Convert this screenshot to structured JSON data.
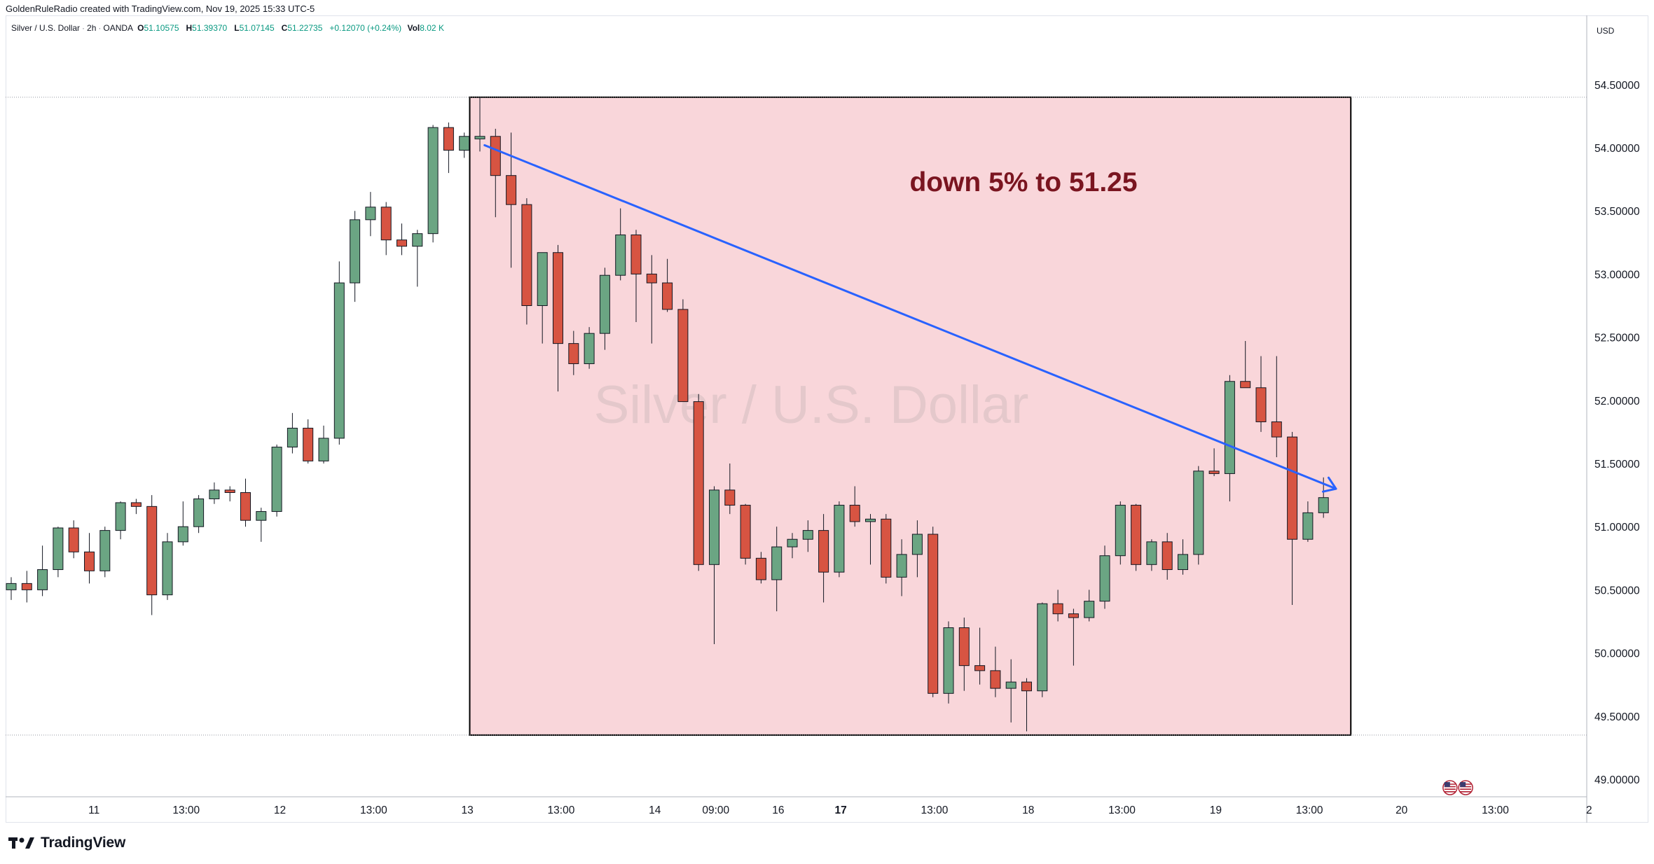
{
  "header": {
    "creator_line": "GoldenRuleRadio created with TradingView.com, Nov 19, 2025 15:33 UTC-5"
  },
  "legend": {
    "symbol": "Silver / U.S. Dollar",
    "interval": "2h",
    "source": "OANDA",
    "open_label": "O",
    "open": "51.10575",
    "high_label": "H",
    "high": "51.39370",
    "low_label": "L",
    "low": "51.07145",
    "close_label": "C",
    "close": "51.22735",
    "change": "+0.12070 (+0.24%)",
    "vol_label": "Vol",
    "vol": "8.02 K"
  },
  "watermark": "Silver / U.S. Dollar",
  "annotation": {
    "text": "down 5% to 51.25",
    "color": "#7a1520"
  },
  "currency_label": "USD",
  "branding": {
    "logo_text": "TradingView"
  },
  "colors": {
    "up": "#6ba583",
    "down": "#d75442",
    "highlight_fill": "#f9d6da",
    "trend_line": "#2962ff",
    "annotation_text": "#7a1520"
  },
  "chart_data": {
    "type": "candlestick",
    "interval": "2h",
    "ylim": [
      48.9,
      54.9
    ],
    "y_ticks": [
      "54.50000",
      "54.00000",
      "53.50000",
      "53.00000",
      "52.50000",
      "52.00000",
      "51.50000",
      "51.00000",
      "50.50000",
      "50.00000",
      "49.50000",
      "49.00000"
    ],
    "x_labels": [
      {
        "index": 5.3,
        "text": "11",
        "bold": false
      },
      {
        "index": 11.2,
        "text": "13:00",
        "bold": false
      },
      {
        "index": 17.2,
        "text": "12",
        "bold": false
      },
      {
        "index": 23.2,
        "text": "13:00",
        "bold": false
      },
      {
        "index": 29.2,
        "text": "13",
        "bold": false
      },
      {
        "index": 35.2,
        "text": "13:00",
        "bold": false
      },
      {
        "index": 41.2,
        "text": "14",
        "bold": false
      },
      {
        "index": 45.1,
        "text": "09:00",
        "bold": false
      },
      {
        "index": 49.1,
        "text": "16",
        "bold": false
      },
      {
        "index": 53.1,
        "text": "17",
        "bold": true
      },
      {
        "index": 59.1,
        "text": "13:00",
        "bold": false
      },
      {
        "index": 65.1,
        "text": "18",
        "bold": false
      },
      {
        "index": 71.1,
        "text": "13:00",
        "bold": false
      },
      {
        "index": 77.1,
        "text": "19",
        "bold": false
      },
      {
        "index": 83.1,
        "text": "13:00",
        "bold": false
      },
      {
        "index": 89.0,
        "text": "20",
        "bold": false
      },
      {
        "index": 95.0,
        "text": "13:00",
        "bold": false
      },
      {
        "index": 101.0,
        "text": "2",
        "bold": false
      }
    ],
    "candles": [
      [
        50.5,
        50.6,
        50.42,
        50.55
      ],
      [
        50.55,
        50.65,
        50.4,
        50.5
      ],
      [
        50.5,
        50.85,
        50.45,
        50.66
      ],
      [
        50.66,
        51.0,
        50.6,
        50.99
      ],
      [
        50.99,
        51.05,
        50.75,
        50.8
      ],
      [
        50.8,
        50.95,
        50.55,
        50.65
      ],
      [
        50.65,
        51.0,
        50.6,
        50.97
      ],
      [
        50.97,
        51.2,
        50.9,
        51.19
      ],
      [
        51.19,
        51.22,
        51.1,
        51.16
      ],
      [
        51.16,
        51.25,
        50.3,
        50.46
      ],
      [
        50.46,
        50.95,
        50.42,
        50.88
      ],
      [
        50.88,
        51.2,
        50.85,
        51.0
      ],
      [
        51.0,
        51.25,
        50.95,
        51.22
      ],
      [
        51.22,
        51.35,
        51.18,
        51.29
      ],
      [
        51.29,
        51.32,
        51.2,
        51.27
      ],
      [
        51.27,
        51.38,
        51.0,
        51.05
      ],
      [
        51.05,
        51.15,
        50.88,
        51.12
      ],
      [
        51.12,
        51.65,
        51.08,
        51.63
      ],
      [
        51.63,
        51.9,
        51.58,
        51.78
      ],
      [
        51.78,
        51.85,
        51.5,
        51.52
      ],
      [
        51.52,
        51.8,
        51.5,
        51.7
      ],
      [
        51.7,
        53.1,
        51.65,
        52.93
      ],
      [
        52.93,
        53.5,
        52.78,
        53.43
      ],
      [
        53.43,
        53.65,
        53.3,
        53.53
      ],
      [
        53.53,
        53.57,
        53.15,
        53.27
      ],
      [
        53.27,
        53.4,
        53.15,
        53.22
      ],
      [
        53.22,
        53.35,
        52.9,
        53.32
      ],
      [
        53.32,
        54.18,
        53.25,
        54.16
      ],
      [
        54.16,
        54.2,
        53.8,
        53.98
      ],
      [
        53.98,
        54.12,
        53.92,
        54.09
      ],
      [
        54.07,
        54.4,
        53.97,
        54.09
      ],
      [
        54.09,
        54.15,
        53.45,
        53.78
      ],
      [
        53.78,
        54.12,
        53.05,
        53.55
      ],
      [
        53.55,
        53.6,
        52.6,
        52.75
      ],
      [
        52.75,
        53.15,
        52.45,
        53.17
      ],
      [
        53.17,
        53.23,
        52.07,
        52.45
      ],
      [
        52.45,
        52.55,
        52.2,
        52.29
      ],
      [
        52.29,
        52.58,
        52.25,
        52.53
      ],
      [
        52.53,
        53.05,
        52.4,
        52.99
      ],
      [
        52.99,
        53.52,
        52.95,
        53.31
      ],
      [
        53.31,
        53.35,
        52.62,
        53.0
      ],
      [
        53.0,
        53.15,
        52.45,
        52.93
      ],
      [
        52.93,
        53.12,
        52.7,
        52.72
      ],
      [
        52.72,
        52.8,
        52.0,
        51.99
      ],
      [
        51.99,
        52.05,
        50.65,
        50.7
      ],
      [
        50.7,
        51.32,
        50.07,
        51.29
      ],
      [
        51.29,
        51.5,
        51.1,
        51.17
      ],
      [
        51.17,
        51.18,
        50.7,
        50.75
      ],
      [
        50.75,
        50.8,
        50.55,
        50.58
      ],
      [
        50.58,
        51.0,
        50.33,
        50.84
      ],
      [
        50.84,
        50.95,
        50.75,
        50.9
      ],
      [
        50.9,
        51.05,
        50.8,
        50.97
      ],
      [
        50.97,
        51.1,
        50.4,
        50.64
      ],
      [
        50.64,
        51.2,
        50.6,
        51.17
      ],
      [
        51.17,
        51.32,
        51.0,
        51.04
      ],
      [
        51.04,
        51.1,
        50.7,
        51.06
      ],
      [
        51.06,
        51.1,
        50.55,
        50.6
      ],
      [
        50.6,
        50.9,
        50.45,
        50.78
      ],
      [
        50.78,
        51.05,
        50.6,
        50.94
      ],
      [
        50.94,
        51.0,
        49.65,
        49.68
      ],
      [
        49.68,
        50.25,
        49.6,
        50.2
      ],
      [
        50.2,
        50.28,
        49.7,
        49.9
      ],
      [
        49.9,
        50.2,
        49.75,
        49.86
      ],
      [
        49.86,
        50.05,
        49.65,
        49.72
      ],
      [
        49.72,
        49.95,
        49.45,
        49.77
      ],
      [
        49.77,
        49.8,
        49.38,
        49.7
      ],
      [
        49.7,
        50.4,
        49.65,
        50.39
      ],
      [
        50.39,
        50.5,
        50.25,
        50.31
      ],
      [
        50.31,
        50.35,
        49.9,
        50.28
      ],
      [
        50.28,
        50.5,
        50.25,
        50.41
      ],
      [
        50.41,
        50.85,
        50.35,
        50.77
      ],
      [
        50.77,
        51.2,
        50.7,
        51.17
      ],
      [
        51.17,
        51.18,
        50.65,
        50.7
      ],
      [
        50.7,
        50.9,
        50.65,
        50.88
      ],
      [
        50.88,
        50.95,
        50.58,
        50.66
      ],
      [
        50.66,
        50.9,
        50.62,
        50.78
      ],
      [
        50.78,
        51.48,
        50.7,
        51.44
      ],
      [
        51.44,
        51.62,
        51.4,
        51.42
      ],
      [
        51.42,
        52.2,
        51.2,
        52.15
      ],
      [
        52.15,
        52.47,
        52.1,
        52.1
      ],
      [
        52.1,
        52.35,
        51.75,
        51.83
      ],
      [
        51.83,
        52.35,
        51.55,
        51.71
      ],
      [
        51.71,
        51.75,
        50.38,
        50.9
      ],
      [
        50.9,
        51.2,
        50.88,
        51.11
      ],
      [
        51.11,
        51.39,
        51.07,
        51.23
      ]
    ],
    "highlight_zone": {
      "from_index": 29.35,
      "to_index": 85.75,
      "top": 54.4,
      "bottom": 49.35
    },
    "reference_lines": [
      54.4,
      49.35
    ],
    "trend_line": {
      "from": {
        "index": 30.3,
        "value": 54.02
      },
      "to": {
        "index": 84.8,
        "value": 51.3
      }
    },
    "markers": [
      {
        "index": 92.1,
        "type": "us-flag-icon"
      },
      {
        "index": 93.1,
        "type": "us-flag-icon"
      }
    ]
  }
}
